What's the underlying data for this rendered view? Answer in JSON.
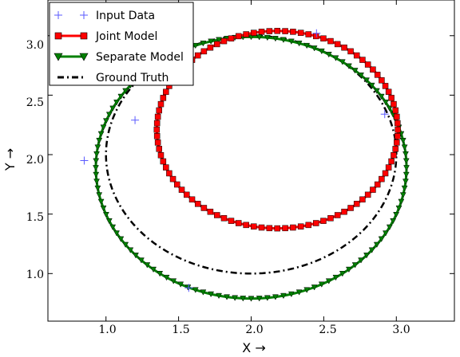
{
  "chart_data": {
    "type": "line",
    "title": "",
    "xlabel": "X →",
    "ylabel": "Y →",
    "xlim": [
      0.6,
      3.4
    ],
    "ylim": [
      0.6,
      3.3
    ],
    "xticks": [
      1.0,
      1.5,
      2.0,
      2.5,
      3.0
    ],
    "yticks": [
      1.0,
      1.5,
      2.0,
      2.5,
      3.0
    ],
    "xtick_labels": [
      "1.0",
      "1.5",
      "2.0",
      "2.5",
      "3.0"
    ],
    "ytick_labels": [
      "1.0",
      "1.5",
      "2.0",
      "2.5",
      "3.0"
    ],
    "grid": false,
    "legend_position": "top-left",
    "series": [
      {
        "name": "Input Data",
        "kind": "scatter",
        "marker": "plus",
        "color": "#5a5aff",
        "x": [
          0.85,
          1.2,
          1.25,
          1.57,
          2.45,
          2.92
        ],
        "y": [
          1.95,
          2.29,
          2.63,
          0.88,
          3.02,
          2.34
        ]
      },
      {
        "name": "Joint Model",
        "kind": "ellipse",
        "marker": "square",
        "color": "#ff0000",
        "cx": 2.18,
        "cy": 2.21,
        "rx": 0.83,
        "ry": 0.83,
        "points": 96
      },
      {
        "name": "Separate Model",
        "kind": "ellipse",
        "marker": "triangle-down",
        "color": "#008000",
        "cx": 2.0,
        "cy": 1.89,
        "rx": 1.07,
        "ry": 1.1,
        "points": 120
      },
      {
        "name": "Ground Truth",
        "kind": "ellipse",
        "marker": "none",
        "linestyle": "dashdot",
        "color": "#000000",
        "cx": 2.0,
        "cy": 2.0,
        "rx": 1.0,
        "ry": 1.0
      }
    ]
  }
}
